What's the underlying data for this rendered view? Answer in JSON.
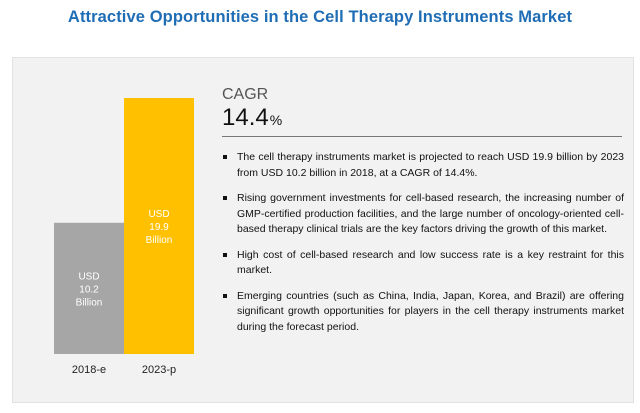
{
  "page": {
    "title": "Attractive Opportunities in the Cell Therapy Instruments Market"
  },
  "chart_data": {
    "type": "bar",
    "categories": [
      "2018-e",
      "2023-p"
    ],
    "values": [
      10.2,
      19.9
    ],
    "data_labels": [
      [
        "USD",
        "10.2",
        "Billion"
      ],
      [
        "USD",
        "19.9",
        "Billion"
      ]
    ],
    "colors": [
      "#a6a6a6",
      "#ffc000"
    ],
    "ylim": [
      0,
      19.9
    ],
    "grid": false,
    "legend": "none"
  },
  "cagr": {
    "label": "CAGR",
    "value": "14.4",
    "unit": "%"
  },
  "bullets": [
    "The cell therapy instruments market is projected to reach USD 19.9 billion by 2023 from USD 10.2 billion in 2018, at a CAGR of 14.4%.",
    "Rising government investments for cell-based research, the increasing number of GMP-certified production facilities, and the large number of oncology-oriented cell-based therapy clinical trials are the key factors driving the growth of this market.",
    "High cost of cell-based research and low success rate is a key restraint for this market.",
    "Emerging countries (such as China, India, Japan, Korea, and Brazil) are offering significant growth opportunities for players in the cell therapy instruments market during the forecast period."
  ]
}
